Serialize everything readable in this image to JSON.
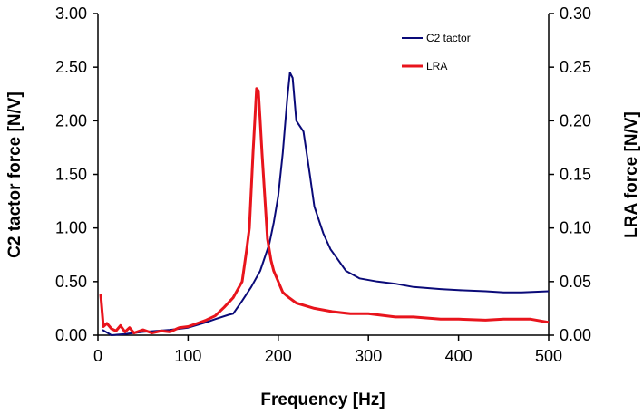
{
  "chart_data": {
    "type": "line",
    "title": "",
    "xlabel": "Frequency [Hz]",
    "ylabel": "C2 tactor force [N/V]",
    "y2label": "LRA force [N/V]",
    "xlim": [
      0,
      500
    ],
    "ylim": [
      0,
      3.0
    ],
    "y2lim": [
      0,
      0.3
    ],
    "xticks": [
      "0",
      "100",
      "200",
      "300",
      "400",
      "500"
    ],
    "yticks": [
      "0.00",
      "0.50",
      "1.00",
      "1.50",
      "2.00",
      "2.50",
      "3.00"
    ],
    "y2ticks": [
      "0.00",
      "0.05",
      "0.10",
      "0.15",
      "0.20",
      "0.25",
      "0.30"
    ],
    "grid": false,
    "legend_position": "top-right",
    "series": [
      {
        "name": "C2 tactor",
        "axis": "left",
        "color": "#0a0a78",
        "x": [
          5,
          15,
          30,
          50,
          80,
          100,
          120,
          130,
          145,
          150,
          160,
          170,
          180,
          190,
          195,
          200,
          205,
          210,
          213,
          216,
          220,
          228,
          235,
          240,
          250,
          258,
          265,
          275,
          290,
          310,
          330,
          350,
          380,
          400,
          430,
          450,
          470,
          500
        ],
        "y": [
          0.05,
          0.0,
          0.01,
          0.03,
          0.05,
          0.07,
          0.12,
          0.15,
          0.19,
          0.2,
          0.32,
          0.45,
          0.6,
          0.85,
          1.05,
          1.3,
          1.7,
          2.2,
          2.45,
          2.4,
          2.0,
          1.9,
          1.5,
          1.2,
          0.95,
          0.8,
          0.72,
          0.6,
          0.53,
          0.5,
          0.48,
          0.45,
          0.43,
          0.42,
          0.41,
          0.4,
          0.4,
          0.41
        ]
      },
      {
        "name": "LRA",
        "axis": "right",
        "color": "#e8141c",
        "x": [
          3,
          6,
          10,
          15,
          20,
          25,
          30,
          35,
          40,
          50,
          60,
          70,
          80,
          90,
          100,
          110,
          120,
          130,
          140,
          150,
          160,
          165,
          168,
          172,
          176,
          178,
          180,
          182,
          185,
          188,
          192,
          195,
          200,
          205,
          212,
          220,
          240,
          260,
          280,
          300,
          330,
          350,
          380,
          400,
          430,
          450,
          480,
          500
        ],
        "y": [
          0.038,
          0.008,
          0.011,
          0.006,
          0.004,
          0.009,
          0.003,
          0.007,
          0.002,
          0.005,
          0.002,
          0.004,
          0.003,
          0.007,
          0.008,
          0.011,
          0.014,
          0.018,
          0.026,
          0.035,
          0.05,
          0.08,
          0.1,
          0.17,
          0.23,
          0.228,
          0.2,
          0.17,
          0.13,
          0.09,
          0.07,
          0.06,
          0.05,
          0.04,
          0.035,
          0.03,
          0.025,
          0.022,
          0.02,
          0.02,
          0.017,
          0.017,
          0.015,
          0.015,
          0.014,
          0.015,
          0.015,
          0.012
        ]
      }
    ]
  }
}
